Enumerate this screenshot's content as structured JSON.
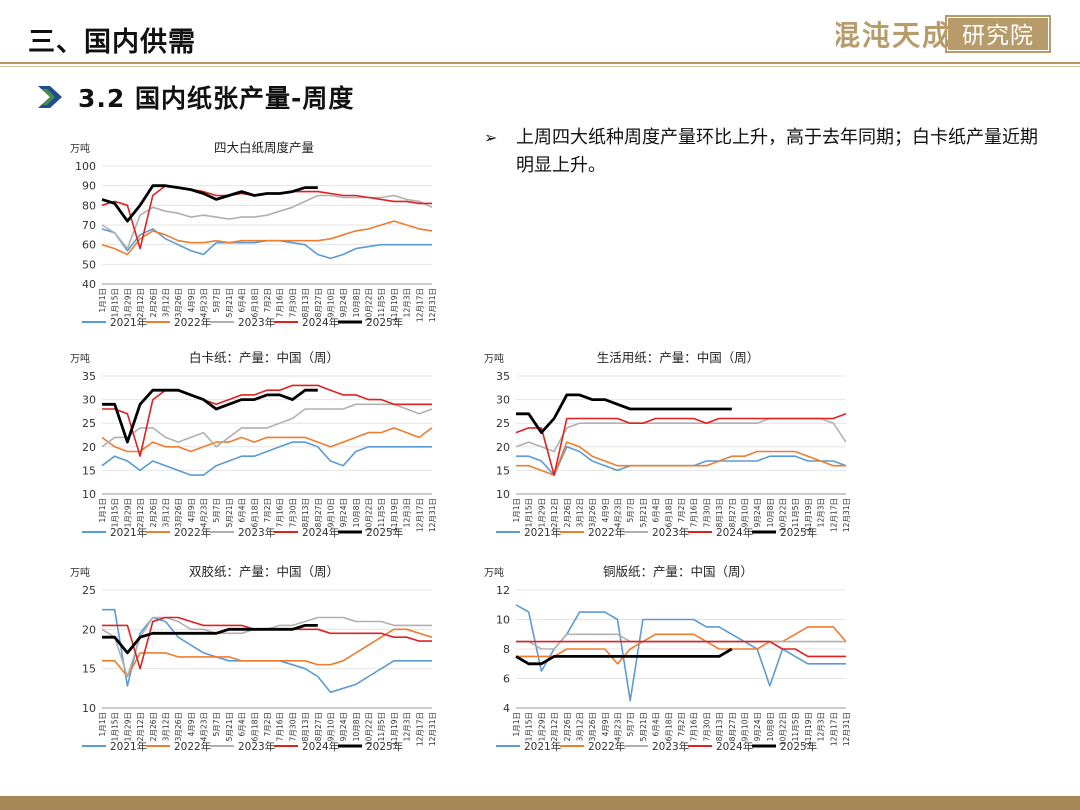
{
  "header": {
    "title": "三、国内供需",
    "logo_text": "混沌天成研究院"
  },
  "section": {
    "title": "3.2 国内纸张产量-周度"
  },
  "note": {
    "bullet": "➢",
    "text": "上周四大纸种周度产量环比上升，高于去年同期；白卡纸产量近期明显上升。"
  },
  "colors": {
    "2021年": "#5b9bd5",
    "2022年": "#ed7d31",
    "2023年": "#b0b0b0",
    "2024年": "#e02020",
    "2025年": "#000000"
  },
  "chart_data": [
    {
      "id": "c1",
      "type": "line",
      "title": "四大白纸周度产量",
      "ylabel": "万吨",
      "ylim": [
        40,
        100
      ],
      "yticks": [
        40,
        50,
        60,
        70,
        80,
        90,
        100
      ],
      "x": [
        "1月1日",
        "1月15日",
        "1月29日",
        "2月12日",
        "2月26日",
        "3月12日",
        "3月26日",
        "4月9日",
        "4月23日",
        "5月7日",
        "5月21日",
        "6月4日",
        "6月18日",
        "7月2日",
        "7月16日",
        "7月30日",
        "8月13日",
        "8月27日",
        "9月10日",
        "9月24日",
        "10月8日",
        "10月22日",
        "11月5日",
        "11月19日",
        "12月3日",
        "12月17日",
        "12月31日"
      ],
      "series": [
        {
          "name": "2021年",
          "values": [
            68,
            66,
            57,
            65,
            68,
            63,
            60,
            57,
            55,
            61,
            61,
            61,
            61,
            62,
            62,
            61,
            60,
            55,
            53,
            55,
            58,
            59,
            60,
            60,
            60,
            60,
            60
          ]
        },
        {
          "name": "2022年",
          "values": [
            60,
            58,
            55,
            63,
            67,
            65,
            62,
            61,
            61,
            62,
            61,
            62,
            62,
            62,
            62,
            62,
            62,
            62,
            63,
            65,
            67,
            68,
            70,
            72,
            70,
            68,
            67
          ]
        },
        {
          "name": "2023年",
          "values": [
            70,
            66,
            58,
            75,
            79,
            77,
            76,
            74,
            75,
            74,
            73,
            74,
            74,
            75,
            77,
            79,
            82,
            85,
            85,
            84,
            84,
            84,
            84,
            85,
            83,
            82,
            79
          ]
        },
        {
          "name": "2024年",
          "values": [
            80,
            82,
            80,
            58,
            85,
            90,
            89,
            88,
            87,
            85,
            85,
            86,
            85,
            86,
            86,
            87,
            87,
            87,
            86,
            85,
            85,
            84,
            83,
            82,
            82,
            81,
            81
          ]
        },
        {
          "name": "2025年",
          "values": [
            83,
            81,
            72,
            80,
            90,
            90,
            89,
            88,
            86,
            83,
            85,
            87,
            85,
            86,
            86,
            87,
            89,
            89,
            null,
            null,
            null,
            null,
            null,
            null,
            null,
            null,
            null
          ]
        }
      ]
    },
    {
      "id": "c2",
      "type": "line",
      "title": "白卡纸：产量：中国（周）",
      "ylabel": "万吨",
      "ylim": [
        10,
        35
      ],
      "yticks": [
        10,
        15,
        20,
        25,
        30,
        35
      ],
      "x": [
        "1月1日",
        "1月15日",
        "1月29日",
        "2月12日",
        "2月26日",
        "3月12日",
        "3月26日",
        "4月9日",
        "4月23日",
        "5月7日",
        "5月21日",
        "6月4日",
        "6月18日",
        "7月2日",
        "7月16日",
        "7月30日",
        "8月13日",
        "8月27日",
        "9月10日",
        "9月24日",
        "10月8日",
        "10月22日",
        "11月5日",
        "11月19日",
        "12月3日",
        "12月17日",
        "12月31日"
      ],
      "series": [
        {
          "name": "2021年",
          "values": [
            16,
            18,
            17,
            15,
            17,
            16,
            15,
            14,
            14,
            16,
            17,
            18,
            18,
            19,
            20,
            21,
            21,
            20,
            17,
            16,
            19,
            20,
            20,
            20,
            20,
            20,
            20
          ]
        },
        {
          "name": "2022年",
          "values": [
            22,
            20,
            19,
            19,
            21,
            20,
            20,
            19,
            20,
            21,
            21,
            22,
            21,
            22,
            22,
            22,
            22,
            21,
            20,
            21,
            22,
            23,
            23,
            24,
            23,
            22,
            24
          ]
        },
        {
          "name": "2023年",
          "values": [
            20,
            22,
            22,
            24,
            24,
            22,
            21,
            22,
            23,
            20,
            22,
            24,
            24,
            24,
            25,
            26,
            28,
            28,
            28,
            28,
            29,
            29,
            29,
            29,
            28,
            27,
            28
          ]
        },
        {
          "name": "2024年",
          "values": [
            28,
            28,
            27,
            18,
            30,
            32,
            32,
            31,
            30,
            29,
            30,
            31,
            31,
            32,
            32,
            33,
            33,
            33,
            32,
            31,
            31,
            30,
            30,
            29,
            29,
            29,
            29
          ]
        },
        {
          "name": "2025年",
          "values": [
            29,
            29,
            21,
            29,
            32,
            32,
            32,
            31,
            30,
            28,
            29,
            30,
            30,
            31,
            31,
            30,
            32,
            32,
            null,
            null,
            null,
            null,
            null,
            null,
            null,
            null,
            null
          ]
        }
      ]
    },
    {
      "id": "c3",
      "type": "line",
      "title": "生活用纸：产量：中国（周）",
      "ylabel": "万吨",
      "ylim": [
        10,
        35
      ],
      "yticks": [
        10,
        15,
        20,
        25,
        30,
        35
      ],
      "x": [
        "1月1日",
        "1月15日",
        "1月29日",
        "2月12日",
        "2月26日",
        "3月12日",
        "3月26日",
        "4月9日",
        "4月23日",
        "5月7日",
        "5月21日",
        "6月4日",
        "6月18日",
        "7月2日",
        "7月16日",
        "7月30日",
        "8月13日",
        "8月27日",
        "9月10日",
        "9月24日",
        "10月8日",
        "10月22日",
        "11月5日",
        "11月19日",
        "12月3日",
        "12月17日",
        "12月31日"
      ],
      "series": [
        {
          "name": "2021年",
          "values": [
            18,
            18,
            17,
            14,
            20,
            19,
            17,
            16,
            15,
            16,
            16,
            16,
            16,
            16,
            16,
            17,
            17,
            17,
            17,
            17,
            18,
            18,
            18,
            17,
            17,
            17,
            16
          ]
        },
        {
          "name": "2022年",
          "values": [
            16,
            16,
            15,
            14,
            21,
            20,
            18,
            17,
            16,
            16,
            16,
            16,
            16,
            16,
            16,
            16,
            17,
            18,
            18,
            19,
            19,
            19,
            19,
            18,
            17,
            16,
            16
          ]
        },
        {
          "name": "2023年",
          "values": [
            20,
            21,
            20,
            19,
            24,
            25,
            25,
            25,
            25,
            25,
            25,
            25,
            25,
            25,
            25,
            25,
            25,
            25,
            25,
            25,
            26,
            26,
            26,
            26,
            26,
            25,
            21
          ]
        },
        {
          "name": "2024年",
          "values": [
            23,
            24,
            24,
            14,
            26,
            26,
            26,
            26,
            26,
            25,
            25,
            26,
            26,
            26,
            26,
            25,
            26,
            26,
            26,
            26,
            26,
            26,
            26,
            26,
            26,
            26,
            27
          ]
        },
        {
          "name": "2025年",
          "values": [
            27,
            27,
            23,
            26,
            31,
            31,
            30,
            30,
            29,
            28,
            28,
            28,
            28,
            28,
            28,
            28,
            28,
            28,
            null,
            null,
            null,
            null,
            null,
            null,
            null,
            null,
            null
          ]
        }
      ]
    },
    {
      "id": "c4",
      "type": "line",
      "title": "双胶纸：产量：中国（周）",
      "ylabel": "万吨",
      "ylim": [
        10,
        25
      ],
      "yticks": [
        10,
        15,
        20,
        25
      ],
      "x": [
        "1月1日",
        "1月15日",
        "1月29日",
        "2月12日",
        "2月26日",
        "3月12日",
        "3月26日",
        "4月9日",
        "4月23日",
        "5月7日",
        "5月21日",
        "6月4日",
        "6月18日",
        "7月2日",
        "7月16日",
        "7月30日",
        "8月13日",
        "8月27日",
        "9月10日",
        "9月24日",
        "10月8日",
        "10月22日",
        "11月5日",
        "11月19日",
        "12月3日",
        "12月17日",
        "12月31日"
      ],
      "series": [
        {
          "name": "2021年",
          "values": [
            22.5,
            22.5,
            12.8,
            19.5,
            21.5,
            21,
            19,
            18,
            17,
            16.5,
            16,
            16,
            16,
            16,
            16,
            15.5,
            15,
            14,
            12,
            12.5,
            13,
            14,
            15,
            16,
            16,
            16,
            16
          ]
        },
        {
          "name": "2022年",
          "values": [
            16,
            16,
            14,
            17,
            17,
            17,
            16.5,
            16.5,
            16.5,
            16.5,
            16.5,
            16,
            16,
            16,
            16,
            16,
            16,
            15.5,
            15.5,
            16,
            17,
            18,
            19,
            20,
            20,
            19.5,
            19
          ]
        },
        {
          "name": "2023年",
          "values": [
            20,
            19,
            14,
            19,
            21.5,
            21.5,
            21,
            20,
            20,
            19.5,
            19.5,
            19.5,
            20,
            20,
            20.5,
            20.5,
            21,
            21.5,
            21.5,
            21.5,
            21,
            21,
            21,
            20.5,
            20.5,
            20.5,
            20.5
          ]
        },
        {
          "name": "2024年",
          "values": [
            20.5,
            20.5,
            20.5,
            15,
            21,
            21.5,
            21.5,
            21,
            20.5,
            20.5,
            20.5,
            20.5,
            20,
            20,
            20,
            20,
            20,
            20,
            19.5,
            19.5,
            19.5,
            19.5,
            19.5,
            19,
            19,
            18.5,
            18.5
          ]
        },
        {
          "name": "2025年",
          "values": [
            19,
            19,
            17,
            19,
            19.5,
            19.5,
            19.5,
            19.5,
            19.5,
            19.5,
            20,
            20,
            20,
            20,
            20,
            20,
            20.5,
            20.5,
            null,
            null,
            null,
            null,
            null,
            null,
            null,
            null,
            null
          ]
        }
      ]
    },
    {
      "id": "c5",
      "type": "line",
      "title": "铜版纸：产量：中国（周）",
      "ylabel": "万吨",
      "ylim": [
        4,
        12
      ],
      "yticks": [
        4,
        6,
        8,
        10,
        12
      ],
      "x": [
        "1月1日",
        "1月15日",
        "1月29日",
        "2月12日",
        "2月26日",
        "3月12日",
        "3月26日",
        "4月9日",
        "4月23日",
        "5月7日",
        "5月21日",
        "6月4日",
        "6月18日",
        "7月2日",
        "7月16日",
        "7月30日",
        "8月13日",
        "8月27日",
        "9月10日",
        "9月24日",
        "10月8日",
        "10月22日",
        "11月5日",
        "11月19日",
        "12月3日",
        "12月17日",
        "12月31日"
      ],
      "series": [
        {
          "name": "2021年",
          "values": [
            11,
            10.5,
            6.5,
            8,
            9,
            10.5,
            10.5,
            10.5,
            10,
            4.5,
            10,
            10,
            10,
            10,
            10,
            9.5,
            9.5,
            9,
            8.5,
            8,
            5.5,
            8,
            7.5,
            7,
            7,
            7,
            7
          ]
        },
        {
          "name": "2022年",
          "values": [
            7.5,
            7.5,
            7.5,
            7.5,
            8,
            8,
            8,
            8,
            7,
            8,
            8.5,
            9,
            9,
            9,
            9,
            8.5,
            8,
            8,
            8,
            8,
            8.5,
            8.5,
            9,
            9.5,
            9.5,
            9.5,
            8.5
          ]
        },
        {
          "name": "2023年",
          "values": [
            8.5,
            8.5,
            8,
            8,
            9,
            9,
            9,
            9,
            9,
            8.5,
            8.5,
            8.5,
            8.5,
            8.5,
            8.5,
            8.5,
            8.5,
            8.5,
            8.5,
            8.5,
            8.5,
            8.5,
            8.5,
            8.5,
            8.5,
            8.5,
            8.5
          ]
        },
        {
          "name": "2024年",
          "values": [
            8.5,
            8.5,
            8.5,
            8.5,
            8.5,
            8.5,
            8.5,
            8.5,
            8.5,
            8.5,
            8.5,
            8.5,
            8.5,
            8.5,
            8.5,
            8.5,
            8.5,
            8.5,
            8.5,
            8.5,
            8.5,
            8,
            8,
            7.5,
            7.5,
            7.5,
            7.5
          ]
        },
        {
          "name": "2025年",
          "values": [
            7.5,
            7,
            7,
            7.5,
            7.5,
            7.5,
            7.5,
            7.5,
            7.5,
            7.5,
            7.5,
            7.5,
            7.5,
            7.5,
            7.5,
            7.5,
            7.5,
            8,
            null,
            null,
            null,
            null,
            null,
            null,
            null,
            null,
            null
          ]
        }
      ]
    }
  ]
}
